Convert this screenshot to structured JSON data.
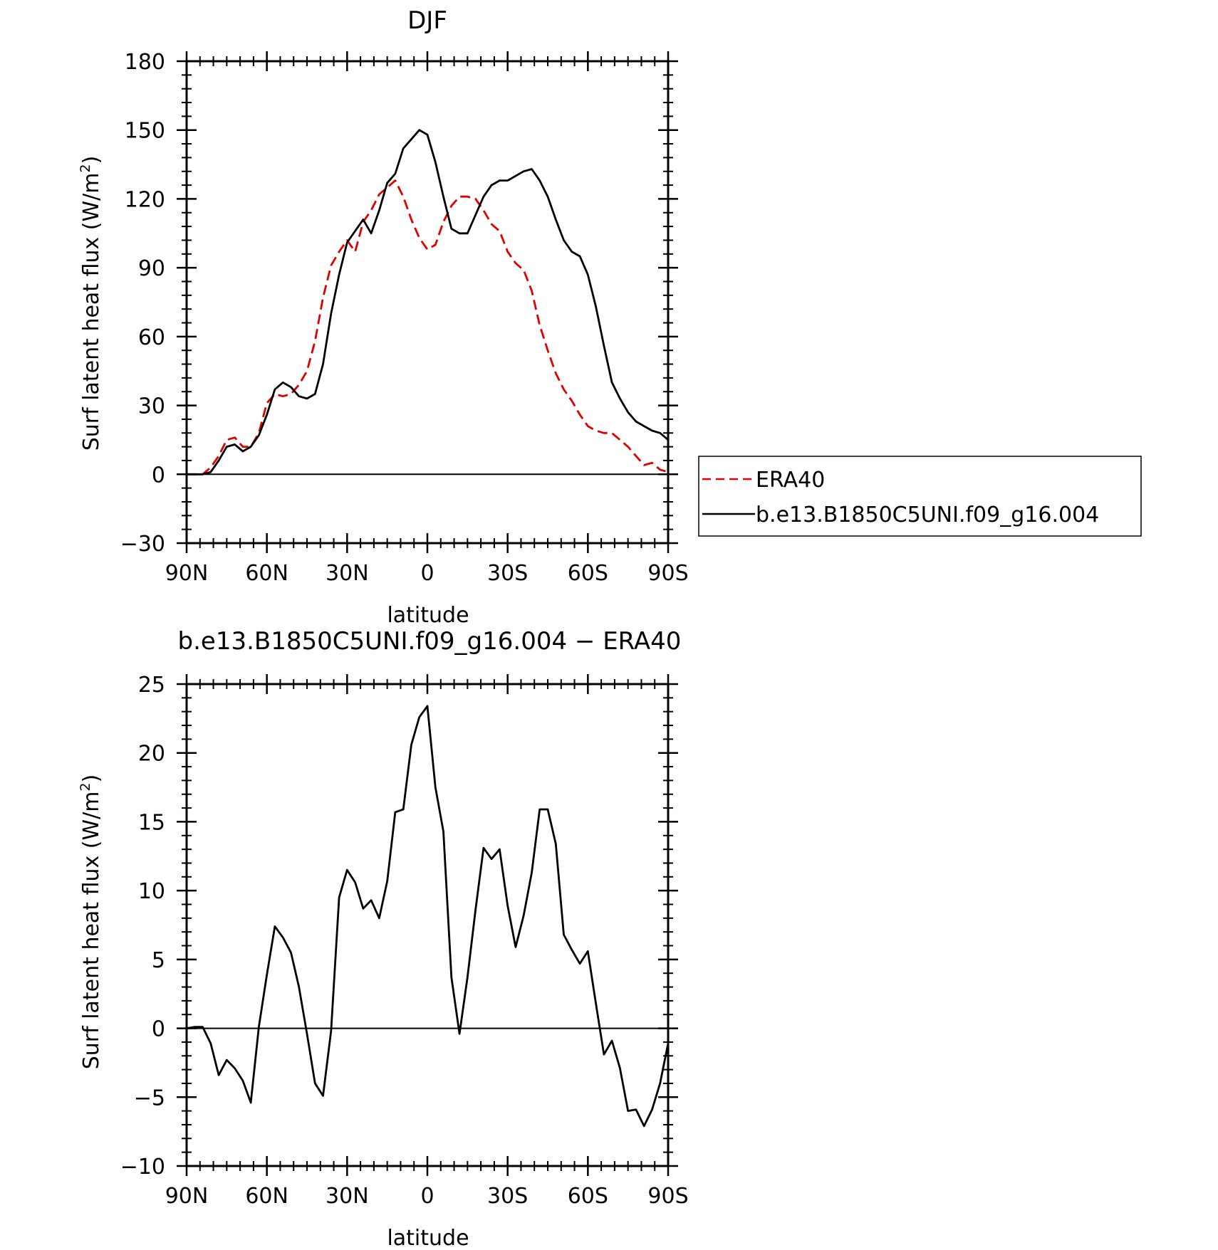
{
  "chart_data": [
    {
      "type": "line",
      "title": "DJF",
      "xlabel": "latitude",
      "ylabel": "Surf latent heat flux (W/m",
      "ylabel_sup": "2",
      "ylabel_close": ")",
      "xlim": [
        90,
        -90
      ],
      "ylim": [
        -30,
        180
      ],
      "xticks": [
        90,
        60,
        30,
        0,
        -30,
        -60,
        -90
      ],
      "xtick_labels": [
        "90N",
        "60N",
        "30N",
        "0",
        "30S",
        "60S",
        "90S"
      ],
      "yticks": [
        -30,
        0,
        30,
        60,
        90,
        120,
        150,
        180
      ],
      "ytick_labels": [
        "−30",
        "0",
        "30",
        "60",
        "90",
        "120",
        "150",
        "180"
      ],
      "grid": false,
      "legend": {
        "placement": "right",
        "entries": [
          "ERA40",
          "b.e13.B1850C5UNI.f09_g16.004"
        ]
      },
      "series": [
        {
          "name": "ERA40",
          "color": "#e00000",
          "dashed": true,
          "points": [
            [
              90,
              0
            ],
            [
              87,
              0
            ],
            [
              84,
              0
            ],
            [
              81,
              3
            ],
            [
              78,
              8
            ],
            [
              75,
              15
            ],
            [
              72,
              16
            ],
            [
              69,
              12
            ],
            [
              66,
              12
            ],
            [
              63,
              18
            ],
            [
              60,
              31
            ],
            [
              57,
              35
            ],
            [
              54,
              34
            ],
            [
              51,
              35
            ],
            [
              48,
              39
            ],
            [
              45,
              45
            ],
            [
              42,
              58
            ],
            [
              39,
              77
            ],
            [
              36,
              91
            ],
            [
              33,
              97
            ],
            [
              30,
              102
            ],
            [
              27,
              97
            ],
            [
              24,
              110
            ],
            [
              21,
              115
            ],
            [
              18,
              122
            ],
            [
              15,
              125
            ],
            [
              12,
              128
            ],
            [
              9,
              121
            ],
            [
              6,
              111
            ],
            [
              3,
              103
            ],
            [
              0,
              98
            ],
            [
              -3,
              100
            ],
            [
              -6,
              110
            ],
            [
              -9,
              117
            ],
            [
              -12,
              121
            ],
            [
              -15,
              121
            ],
            [
              -18,
              120
            ],
            [
              -21,
              115
            ],
            [
              -24,
              109
            ],
            [
              -27,
              106
            ],
            [
              -30,
              97
            ],
            [
              -33,
              92
            ],
            [
              -36,
              89
            ],
            [
              -39,
              80
            ],
            [
              -42,
              65
            ],
            [
              -45,
              54
            ],
            [
              -48,
              44
            ],
            [
              -51,
              37
            ],
            [
              -54,
              32
            ],
            [
              -57,
              26
            ],
            [
              -60,
              21
            ],
            [
              -63,
              19
            ],
            [
              -66,
              18
            ],
            [
              -69,
              18
            ],
            [
              -72,
              15
            ],
            [
              -75,
              12
            ],
            [
              -78,
              8
            ],
            [
              -81,
              4
            ],
            [
              -84,
              5
            ],
            [
              -87,
              2
            ],
            [
              -90,
              1
            ]
          ]
        },
        {
          "name": "b.e13.B1850C5UNI.f09_g16.004",
          "color": "#000000",
          "dashed": false,
          "points": [
            [
              90,
              0
            ],
            [
              87,
              0
            ],
            [
              84,
              0
            ],
            [
              81,
              1
            ],
            [
              78,
              6
            ],
            [
              75,
              12
            ],
            [
              72,
              13
            ],
            [
              69,
              10
            ],
            [
              66,
              12
            ],
            [
              63,
              17
            ],
            [
              60,
              26
            ],
            [
              57,
              37
            ],
            [
              54,
              40
            ],
            [
              51,
              38
            ],
            [
              48,
              34
            ],
            [
              45,
              33
            ],
            [
              42,
              35
            ],
            [
              39,
              48
            ],
            [
              36,
              70
            ],
            [
              33,
              87
            ],
            [
              30,
              101
            ],
            [
              27,
              106
            ],
            [
              24,
              111
            ],
            [
              21,
              105
            ],
            [
              18,
              115
            ],
            [
              15,
              127
            ],
            [
              12,
              131
            ],
            [
              9,
              142
            ],
            [
              6,
              146
            ],
            [
              3,
              150
            ],
            [
              0,
              148
            ],
            [
              -3,
              136
            ],
            [
              -6,
              121
            ],
            [
              -9,
              107
            ],
            [
              -12,
              105
            ],
            [
              -15,
              105
            ],
            [
              -18,
              113
            ],
            [
              -21,
              121
            ],
            [
              -24,
              126
            ],
            [
              -27,
              128
            ],
            [
              -30,
              128
            ],
            [
              -33,
              130
            ],
            [
              -36,
              132
            ],
            [
              -39,
              133
            ],
            [
              -42,
              128
            ],
            [
              -45,
              121
            ],
            [
              -48,
              111
            ],
            [
              -51,
              102
            ],
            [
              -54,
              97
            ],
            [
              -57,
              95
            ],
            [
              -60,
              87
            ],
            [
              -63,
              73
            ],
            [
              -66,
              56
            ],
            [
              -69,
              40
            ],
            [
              -72,
              33
            ],
            [
              -75,
              27
            ],
            [
              -78,
              23
            ],
            [
              -81,
              21
            ],
            [
              -84,
              19
            ],
            [
              -87,
              18
            ],
            [
              -90,
              15
            ]
          ]
        }
      ]
    },
    {
      "type": "line",
      "title": "b.e13.B1850C5UNI.f09_g16.004 − ERA40",
      "xlabel": "latitude",
      "ylabel": "Surf latent heat flux (W/m",
      "ylabel_sup": "2",
      "ylabel_close": ")",
      "xlim": [
        90,
        -90
      ],
      "ylim": [
        -10,
        25
      ],
      "xticks": [
        90,
        60,
        30,
        0,
        -30,
        -60,
        -90
      ],
      "xtick_labels": [
        "90N",
        "60N",
        "30N",
        "0",
        "30S",
        "60S",
        "90S"
      ],
      "yticks": [
        -10,
        -5,
        0,
        5,
        10,
        15,
        20,
        25
      ],
      "ytick_labels": [
        "−10",
        "−5",
        "0",
        "5",
        "10",
        "15",
        "20",
        "25"
      ],
      "grid": false,
      "series": [
        {
          "color": "#000000",
          "dashed": false,
          "points": [
            [
              90,
              0
            ],
            [
              87,
              0.1
            ],
            [
              84,
              0.1
            ],
            [
              81,
              -1.1
            ],
            [
              78,
              -3.4
            ],
            [
              75,
              -2.3
            ],
            [
              72,
              -2.9
            ],
            [
              69,
              -3.8
            ],
            [
              66,
              -5.4
            ],
            [
              63,
              0.1
            ],
            [
              60,
              3.9
            ],
            [
              57,
              7.4
            ],
            [
              54,
              6.6
            ],
            [
              51,
              5.5
            ],
            [
              48,
              3.0
            ],
            [
              45,
              -0.4
            ],
            [
              42,
              -4.0
            ],
            [
              39,
              -4.9
            ],
            [
              36,
              -0.2
            ],
            [
              33,
              9.5
            ],
            [
              30,
              11.5
            ],
            [
              27,
              10.6
            ],
            [
              24,
              8.7
            ],
            [
              21,
              9.3
            ],
            [
              18,
              8.0
            ],
            [
              15,
              10.7
            ],
            [
              12,
              15.7
            ],
            [
              9,
              15.9
            ],
            [
              6,
              20.6
            ],
            [
              3,
              22.6
            ],
            [
              0,
              23.4
            ],
            [
              -3,
              17.5
            ],
            [
              -6,
              14.3
            ],
            [
              -9,
              3.7
            ],
            [
              -12,
              -0.4
            ],
            [
              -15,
              3.7
            ],
            [
              -18,
              8.6
            ],
            [
              -21,
              13.1
            ],
            [
              -24,
              12.3
            ],
            [
              -27,
              13.0
            ],
            [
              -30,
              8.9
            ],
            [
              -33,
              5.9
            ],
            [
              -36,
              8.2
            ],
            [
              -39,
              11.3
            ],
            [
              -42,
              15.9
            ],
            [
              -45,
              15.9
            ],
            [
              -48,
              13.4
            ],
            [
              -51,
              6.8
            ],
            [
              -54,
              5.7
            ],
            [
              -57,
              4.7
            ],
            [
              -60,
              5.6
            ],
            [
              -63,
              1.8
            ],
            [
              -66,
              -1.9
            ],
            [
              -69,
              -0.9
            ],
            [
              -72,
              -2.9
            ],
            [
              -75,
              -6.0
            ],
            [
              -78,
              -5.9
            ],
            [
              -81,
              -7.1
            ],
            [
              -84,
              -5.9
            ],
            [
              -87,
              -4.0
            ],
            [
              -90,
              -1.1
            ]
          ]
        }
      ]
    }
  ]
}
